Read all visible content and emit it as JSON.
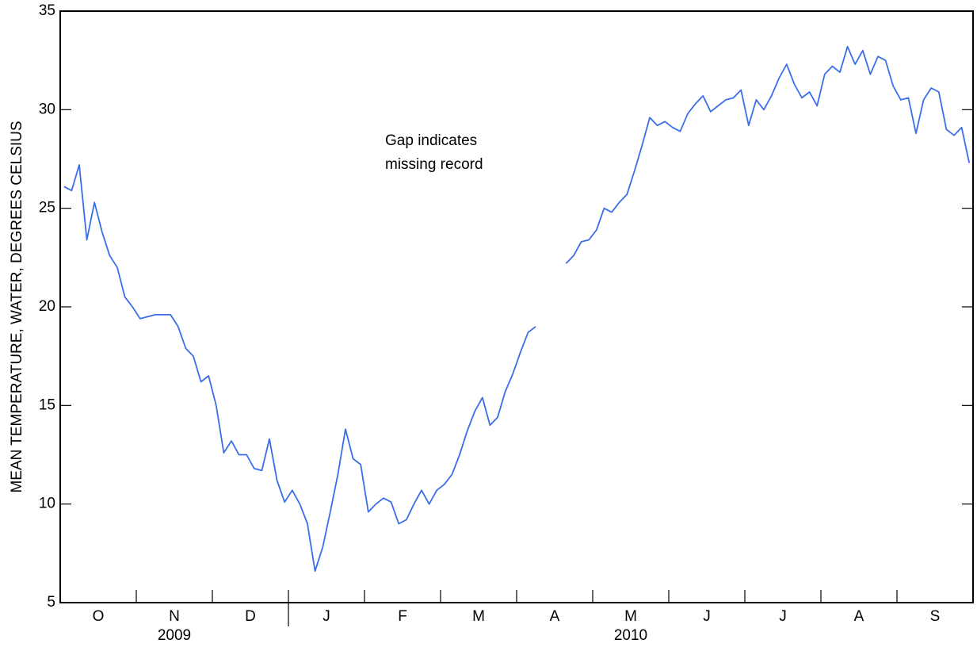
{
  "chart_data": {
    "type": "line",
    "y_label": "MEAN TEMPERATURE, WATER, DEGREES CELSIUS",
    "annotation": [
      "Gap indicates",
      "missing record"
    ],
    "x_group_labels": [
      "2009",
      "2010"
    ],
    "categories": [
      null,
      null,
      null,
      null,
      null,
      "O",
      null,
      null,
      null,
      null,
      null,
      null,
      null,
      null,
      null,
      "N",
      null,
      null,
      null,
      null,
      null,
      null,
      null,
      null,
      null,
      "D",
      null,
      null,
      null,
      null,
      null,
      null,
      null,
      null,
      null,
      "J",
      null,
      null,
      null,
      null,
      null,
      null,
      null,
      null,
      null,
      "F",
      null,
      null,
      null,
      null,
      null,
      null,
      null,
      null,
      null,
      "M",
      null,
      null,
      null,
      null,
      null,
      null,
      null,
      null,
      null,
      "A",
      null,
      null,
      null,
      null,
      null,
      null,
      null,
      null,
      null,
      "M",
      null,
      null,
      null,
      null,
      null,
      null,
      null,
      null,
      null,
      "J",
      null,
      null,
      null,
      null,
      null,
      null,
      null,
      null,
      null,
      "J",
      null,
      null,
      null,
      null,
      null,
      null,
      null,
      null,
      null,
      "A",
      null,
      null,
      null,
      null,
      null,
      null,
      null,
      null,
      null,
      "S",
      null,
      null,
      null,
      null
    ],
    "values": [
      26.1,
      25.9,
      27.2,
      23.4,
      25.3,
      23.8,
      22.6,
      22.0,
      20.5,
      20.0,
      19.4,
      19.5,
      19.6,
      19.6,
      19.6,
      19.0,
      17.9,
      17.5,
      16.2,
      16.5,
      15.0,
      12.6,
      13.2,
      12.5,
      12.5,
      11.8,
      11.7,
      13.3,
      11.2,
      10.1,
      10.7,
      10.0,
      9.0,
      6.6,
      7.8,
      9.6,
      11.5,
      13.8,
      12.3,
      12.0,
      9.6,
      10.0,
      10.3,
      10.1,
      9.0,
      9.2,
      10.0,
      10.7,
      10.0,
      10.7,
      11.0,
      11.5,
      12.5,
      13.7,
      14.7,
      15.4,
      14.0,
      14.4,
      15.7,
      16.6,
      17.7,
      18.7,
      19.0,
      null,
      null,
      null,
      22.2,
      22.6,
      23.3,
      23.4,
      23.9,
      25.0,
      24.8,
      25.3,
      25.7,
      26.9,
      28.2,
      29.6,
      29.2,
      29.4,
      29.1,
      28.9,
      29.8,
      30.3,
      30.7,
      29.9,
      30.2,
      30.5,
      30.6,
      31.0,
      29.2,
      30.5,
      30.0,
      30.7,
      31.6,
      32.3,
      31.3,
      30.6,
      30.9,
      30.2,
      31.8,
      32.2,
      31.9,
      33.2,
      32.3,
      33.0,
      31.8,
      32.7,
      32.5,
      31.2,
      30.5,
      30.6,
      28.8,
      30.5,
      31.1,
      30.9,
      29.0,
      28.7,
      29.1,
      27.3
    ],
    "color": "#3a6ee8",
    "ylim": [
      5,
      35
    ],
    "yticks": [
      5,
      10,
      15,
      20,
      25,
      30,
      35
    ],
    "grid": false
  }
}
